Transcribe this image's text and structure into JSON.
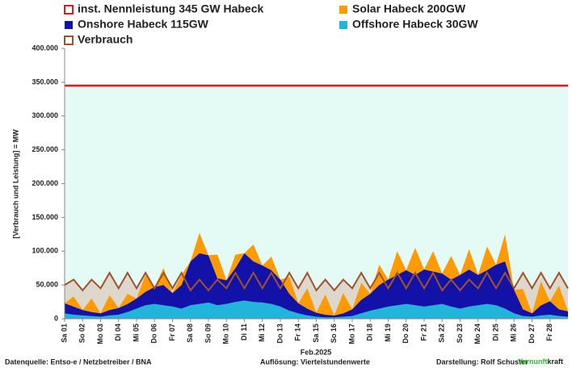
{
  "chart_data": {
    "type": "area",
    "stacked": true,
    "y_label": "[Verbrauch und Leistung] = MW",
    "x_label": "Feb.2025",
    "ylim": [
      0,
      400000
    ],
    "yticks": [
      {
        "value": 0,
        "label": "0"
      },
      {
        "value": 50000,
        "label": "50.000"
      },
      {
        "value": 100000,
        "label": "100.000"
      },
      {
        "value": 150000,
        "label": "150.000"
      },
      {
        "value": 200000,
        "label": "200.000"
      },
      {
        "value": 250000,
        "label": "250.000"
      },
      {
        "value": 300000,
        "label": "300.000"
      },
      {
        "value": 350000,
        "label": "350.000"
      },
      {
        "value": 400000,
        "label": "400.000"
      }
    ],
    "xlim": [
      0,
      28
    ],
    "xticks": [
      {
        "value": 0,
        "label": "Sa 01"
      },
      {
        "value": 1,
        "label": "So 02"
      },
      {
        "value": 2,
        "label": "Mo 03"
      },
      {
        "value": 3,
        "label": "Di 04"
      },
      {
        "value": 4,
        "label": "Mi 05"
      },
      {
        "value": 5,
        "label": "Do 06"
      },
      {
        "value": 6,
        "label": "Fr 07"
      },
      {
        "value": 7,
        "label": "Sa 08"
      },
      {
        "value": 8,
        "label": "So 09"
      },
      {
        "value": 9,
        "label": "Mo 10"
      },
      {
        "value": 10,
        "label": "Di 11"
      },
      {
        "value": 11,
        "label": "Mi 12"
      },
      {
        "value": 12,
        "label": "Do 13"
      },
      {
        "value": 13,
        "label": "Fr 14"
      },
      {
        "value": 14,
        "label": "Sa 15"
      },
      {
        "value": 15,
        "label": "So 16"
      },
      {
        "value": 16,
        "label": "Mo 17"
      },
      {
        "value": 17,
        "label": "Di 18"
      },
      {
        "value": 18,
        "label": "Mi 19"
      },
      {
        "value": 19,
        "label": "Do 20"
      },
      {
        "value": 20,
        "label": "Fr 21"
      },
      {
        "value": 21,
        "label": "Sa 22"
      },
      {
        "value": 22,
        "label": "So 23"
      },
      {
        "value": 23,
        "label": "Mo 24"
      },
      {
        "value": 24,
        "label": "Di 25"
      },
      {
        "value": 25,
        "label": "Mi 26"
      },
      {
        "value": 26,
        "label": "Do 27"
      },
      {
        "value": 27,
        "label": "Fr 28"
      }
    ],
    "capacity": {
      "name": "inst. Nennleistung 345 GW Habeck",
      "value": 345000,
      "color": "#e8191b",
      "below_fill": "#e4faf4"
    },
    "x": [
      0,
      0.5,
      1,
      1.5,
      2,
      2.5,
      3,
      3.5,
      4,
      4.5,
      5,
      5.5,
      6,
      6.5,
      7,
      7.5,
      8,
      8.5,
      9,
      9.5,
      10,
      10.5,
      11,
      11.5,
      12,
      12.5,
      13,
      13.5,
      14,
      14.5,
      15,
      15.5,
      16,
      16.5,
      17,
      17.5,
      18,
      18.5,
      19,
      19.5,
      20,
      20.5,
      21,
      21.5,
      22,
      22.5,
      23,
      23.5,
      24,
      24.5,
      25,
      25.5,
      26,
      26.5,
      27,
      27.5,
      28
    ],
    "series": [
      {
        "name": "Verbrauch",
        "color": "#a0522d",
        "fill": "#ddd8cb",
        "stack": false,
        "values": [
          50000,
          58000,
          42000,
          58000,
          45000,
          68000,
          45000,
          68000,
          45000,
          68000,
          45000,
          68000,
          45000,
          68000,
          42000,
          58000,
          42000,
          58000,
          45000,
          68000,
          45000,
          68000,
          45000,
          68000,
          45000,
          68000,
          45000,
          68000,
          42000,
          58000,
          42000,
          58000,
          45000,
          68000,
          45000,
          68000,
          45000,
          68000,
          45000,
          68000,
          45000,
          68000,
          42000,
          58000,
          42000,
          58000,
          45000,
          68000,
          45000,
          68000,
          45000,
          68000,
          45000,
          68000,
          45000,
          68000,
          45000
        ]
      },
      {
        "name": "Offshore Habeck 30GW",
        "color": "#22b5dc",
        "stack": true,
        "values": [
          8000,
          6000,
          5000,
          4000,
          3000,
          5000,
          6000,
          10000,
          15000,
          20000,
          22000,
          20000,
          18000,
          15000,
          20000,
          22000,
          24000,
          20000,
          22000,
          25000,
          27000,
          25000,
          24000,
          22000,
          18000,
          12000,
          8000,
          5000,
          3000,
          2000,
          2000,
          3000,
          4000,
          8000,
          12000,
          15000,
          18000,
          20000,
          22000,
          20000,
          18000,
          20000,
          22000,
          18000,
          15000,
          18000,
          20000,
          22000,
          20000,
          15000,
          8000,
          4000,
          3000,
          5000,
          6000,
          4000,
          3000
        ]
      },
      {
        "name": "Onshore Habeck 115GW",
        "color": "#1212a8",
        "stack": true,
        "values": [
          15000,
          12000,
          8000,
          6000,
          5000,
          8000,
          10000,
          12000,
          15000,
          20000,
          25000,
          30000,
          20000,
          35000,
          65000,
          75000,
          70000,
          40000,
          35000,
          50000,
          70000,
          60000,
          55000,
          50000,
          40000,
          25000,
          15000,
          10000,
          6000,
          4000,
          3000,
          5000,
          10000,
          20000,
          25000,
          35000,
          40000,
          45000,
          50000,
          45000,
          55000,
          50000,
          45000,
          40000,
          50000,
          55000,
          45000,
          50000,
          60000,
          70000,
          35000,
          10000,
          5000,
          15000,
          20000,
          10000,
          8000
        ]
      },
      {
        "name": "Solar Habeck 200GW",
        "color": "#ff9a00",
        "stack": true,
        "values": [
          0,
          15000,
          0,
          20000,
          0,
          22000,
          0,
          15000,
          0,
          25000,
          0,
          25000,
          0,
          15000,
          0,
          30000,
          0,
          35000,
          0,
          20000,
          0,
          25000,
          0,
          20000,
          0,
          25000,
          0,
          30000,
          0,
          30000,
          0,
          30000,
          0,
          25000,
          0,
          30000,
          0,
          35000,
          0,
          40000,
          0,
          30000,
          0,
          35000,
          0,
          30000,
          0,
          35000,
          0,
          40000,
          0,
          30000,
          0,
          35000,
          0,
          35000,
          0
        ]
      }
    ],
    "footer": {
      "source": "Datenquelle: Entso-e  / Netzbetreiber / BNA",
      "resolution": "Auflösung: Viertelstundenwerte",
      "author": "Darstellung:  Rolf Schuster",
      "brand_a": "Vernunft",
      "brand_b": "kraft"
    }
  }
}
